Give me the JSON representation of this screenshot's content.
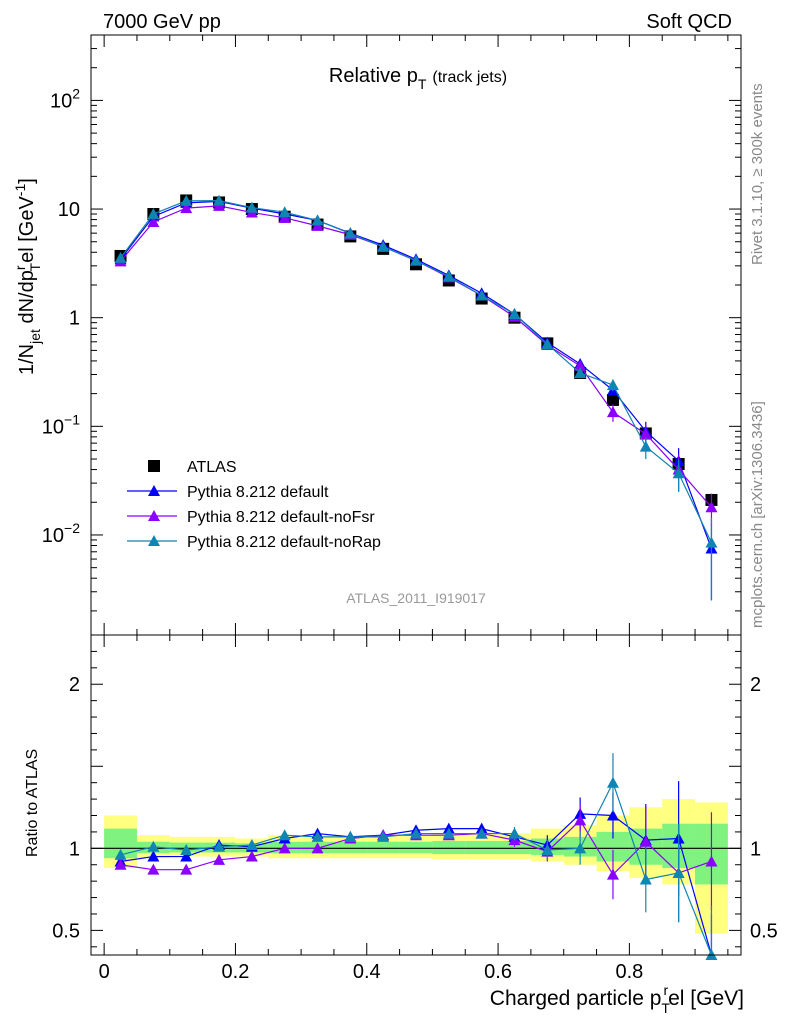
{
  "header": {
    "left": "7000 GeV pp",
    "right": "Soft QCD"
  },
  "side": {
    "rivet": "Rivet 3.1.10, ≥ 300k events",
    "mcplots": "mcplots.cern.ch [arXiv:1306.3436]"
  },
  "analysis_id": "ATLAS_2011_I919017",
  "colors": {
    "data": "#000000",
    "pythia_default": "#0000ff",
    "pythia_nofsr": "#8b00ff",
    "pythia_norap": "#0f85b3",
    "band_yellow": "#ffff80",
    "band_green": "#80f280"
  },
  "chart_data": [
    {
      "type": "scatter",
      "title": "Relative pT (track jets)",
      "title_main": "Relative p",
      "title_sub": "T",
      "title_extra": "(track jets)",
      "ylabel": "1/N_jet dN/dp_T^rel [GeV^-1]",
      "ylabel_parts": {
        "a": "1/N",
        "b": "jet",
        "c": " dN/dp",
        "d": "r",
        "e": "T",
        "f": "el [GeV",
        "g": "-1",
        "h": "]"
      },
      "yscale": "log",
      "xlim": [
        -0.02,
        0.97
      ],
      "ylim": [
        0.0012,
        400
      ],
      "ytick_labels": [
        {
          "value": 0.01,
          "base": "10",
          "exp": "−2"
        },
        {
          "value": 0.1,
          "base": "10",
          "exp": "−1"
        },
        {
          "value": 1,
          "base": "1",
          "exp": ""
        },
        {
          "value": 10,
          "base": "10",
          "exp": ""
        },
        {
          "value": 100,
          "base": "10",
          "exp": "2"
        }
      ],
      "legend_position": "bottom-left",
      "x": [
        0.025,
        0.075,
        0.125,
        0.175,
        0.225,
        0.275,
        0.325,
        0.375,
        0.425,
        0.475,
        0.525,
        0.575,
        0.625,
        0.675,
        0.725,
        0.775,
        0.825,
        0.875,
        0.925
      ],
      "series": [
        {
          "name": "ATLAS",
          "marker": "square",
          "color": "#000000",
          "values": [
            3.7,
            9.0,
            12.0,
            11.5,
            10.0,
            8.5,
            7.2,
            5.6,
            4.3,
            3.1,
            2.2,
            1.5,
            1.0,
            0.58,
            0.31,
            0.175,
            0.086,
            0.045,
            0.021
          ],
          "errors": [
            0,
            0,
            0,
            0,
            0,
            0,
            0,
            0,
            0,
            0,
            0,
            0,
            0,
            0,
            0,
            0,
            0,
            0,
            0
          ]
        },
        {
          "name": "Pythia 8.212 default",
          "marker": "triangle",
          "color": "#0000ff",
          "values": [
            3.45,
            8.55,
            11.4,
            11.75,
            10.2,
            9.0,
            7.85,
            6.0,
            4.65,
            3.45,
            2.45,
            1.68,
            1.08,
            0.59,
            0.375,
            0.215,
            0.09,
            0.048,
            0.0075
          ],
          "errors": [
            0,
            0,
            0,
            0,
            0,
            0,
            0,
            0,
            0,
            0,
            0,
            0,
            0,
            0,
            0,
            0,
            0.02,
            0.015,
            0.005
          ]
        },
        {
          "name": "Pythia 8.212 default-noFsr",
          "marker": "triangle",
          "color": "#8b00ff",
          "values": [
            3.3,
            7.6,
            10.2,
            10.7,
            9.3,
            8.3,
            7.0,
            5.8,
            4.5,
            3.35,
            2.35,
            1.6,
            1.02,
            0.56,
            0.36,
            0.135,
            0.085,
            0.04,
            0.018
          ],
          "errors": [
            0,
            0,
            0,
            0,
            0,
            0,
            0,
            0,
            0,
            0,
            0,
            0,
            0,
            0,
            0.02,
            0.025,
            0.02,
            0.015,
            0.006
          ]
        },
        {
          "name": "Pythia 8.212 default-noRap",
          "marker": "triangle",
          "color": "#0f85b3",
          "values": [
            3.55,
            9.0,
            11.9,
            11.95,
            10.3,
            9.35,
            7.85,
            5.95,
            4.5,
            3.35,
            2.4,
            1.6,
            1.08,
            0.57,
            0.31,
            0.24,
            0.065,
            0.037,
            0.0085
          ],
          "errors": [
            0,
            0,
            0,
            0,
            0,
            0,
            0,
            0,
            0,
            0,
            0,
            0,
            0,
            0,
            0.02,
            0.03,
            0.015,
            0.012,
            0.006
          ]
        }
      ]
    },
    {
      "type": "scatter",
      "title": "",
      "xlabel": "Charged particle p_T^rel [GeV]",
      "xlabel_parts": {
        "a": "Charged particle p",
        "b": "T",
        "c": "r",
        "d": "el [GeV]"
      },
      "ylabel": "Ratio to ATLAS",
      "xlim": [
        -0.02,
        0.97
      ],
      "ylim": [
        0.35,
        2.3
      ],
      "xticks": [
        0,
        0.2,
        0.4,
        0.6,
        0.8
      ],
      "xtick_labels": [
        "0",
        "0.2",
        "0.4",
        "0.6",
        "0.8"
      ],
      "yticks": [
        0.5,
        1,
        2
      ],
      "ytick_labels": [
        "0.5",
        "1",
        "2"
      ],
      "reference_line": 1,
      "bands": {
        "x_edges": [
          0.0,
          0.05,
          0.1,
          0.15,
          0.2,
          0.25,
          0.3,
          0.35,
          0.4,
          0.45,
          0.5,
          0.55,
          0.6,
          0.65,
          0.7,
          0.75,
          0.8,
          0.85,
          0.9,
          0.95
        ],
        "green": [
          [
            0.94,
            1.12
          ],
          [
            0.97,
            1.04
          ],
          [
            0.975,
            1.035
          ],
          [
            0.975,
            1.035
          ],
          [
            0.975,
            1.03
          ],
          [
            0.97,
            1.04
          ],
          [
            0.97,
            1.04
          ],
          [
            0.97,
            1.04
          ],
          [
            0.97,
            1.04
          ],
          [
            0.97,
            1.04
          ],
          [
            0.965,
            1.045
          ],
          [
            0.965,
            1.045
          ],
          [
            0.965,
            1.045
          ],
          [
            0.96,
            1.06
          ],
          [
            0.95,
            1.07
          ],
          [
            0.92,
            1.1
          ],
          [
            0.9,
            1.12
          ],
          [
            0.88,
            1.15
          ],
          [
            0.78,
            1.15
          ]
        ],
        "yellow": [
          [
            0.88,
            1.2
          ],
          [
            0.94,
            1.08
          ],
          [
            0.95,
            1.07
          ],
          [
            0.95,
            1.07
          ],
          [
            0.95,
            1.06
          ],
          [
            0.94,
            1.08
          ],
          [
            0.94,
            1.08
          ],
          [
            0.94,
            1.08
          ],
          [
            0.94,
            1.08
          ],
          [
            0.94,
            1.08
          ],
          [
            0.935,
            1.09
          ],
          [
            0.935,
            1.09
          ],
          [
            0.935,
            1.09
          ],
          [
            0.92,
            1.12
          ],
          [
            0.9,
            1.14
          ],
          [
            0.86,
            1.2
          ],
          [
            0.82,
            1.25
          ],
          [
            0.78,
            1.3
          ],
          [
            0.48,
            1.28
          ]
        ]
      },
      "x": [
        0.025,
        0.075,
        0.125,
        0.175,
        0.225,
        0.275,
        0.325,
        0.375,
        0.425,
        0.475,
        0.525,
        0.575,
        0.625,
        0.675,
        0.725,
        0.775,
        0.825,
        0.875,
        0.925
      ],
      "series": [
        {
          "name": "Pythia 8.212 default",
          "color": "#0000ff",
          "values": [
            0.92,
            0.95,
            0.95,
            1.02,
            1.01,
            1.06,
            1.09,
            1.07,
            1.08,
            1.11,
            1.12,
            1.12,
            1.07,
            1.02,
            1.21,
            1.2,
            1.05,
            1.06,
            0.3
          ],
          "errors": [
            0.02,
            0.01,
            0.01,
            0.01,
            0.01,
            0.01,
            0.01,
            0.01,
            0.01,
            0.02,
            0.02,
            0.03,
            0.04,
            0.06,
            0.1,
            0.14,
            0.22,
            0.35,
            0.3
          ]
        },
        {
          "name": "Pythia 8.212 default-noFsr",
          "color": "#8b00ff",
          "values": [
            0.9,
            0.87,
            0.87,
            0.93,
            0.95,
            1.0,
            1.0,
            1.06,
            1.08,
            1.08,
            1.08,
            1.09,
            1.05,
            0.98,
            1.17,
            0.84,
            1.04,
            0.85,
            0.92
          ],
          "errors": [
            0.02,
            0.01,
            0.01,
            0.01,
            0.01,
            0.01,
            0.01,
            0.01,
            0.01,
            0.02,
            0.02,
            0.03,
            0.04,
            0.06,
            0.1,
            0.15,
            0.22,
            0.3,
            0.3
          ]
        },
        {
          "name": "Pythia 8.212 default-noRap",
          "color": "#0f85b3",
          "values": [
            0.96,
            1.01,
            0.99,
            1.01,
            1.02,
            1.08,
            1.07,
            1.07,
            1.07,
            1.09,
            1.09,
            1.09,
            1.09,
            0.99,
            1.0,
            1.4,
            0.81,
            0.85,
            0.35
          ],
          "errors": [
            0.02,
            0.01,
            0.01,
            0.01,
            0.01,
            0.01,
            0.01,
            0.01,
            0.01,
            0.02,
            0.02,
            0.03,
            0.04,
            0.06,
            0.1,
            0.18,
            0.2,
            0.3,
            0.3
          ]
        }
      ]
    }
  ]
}
